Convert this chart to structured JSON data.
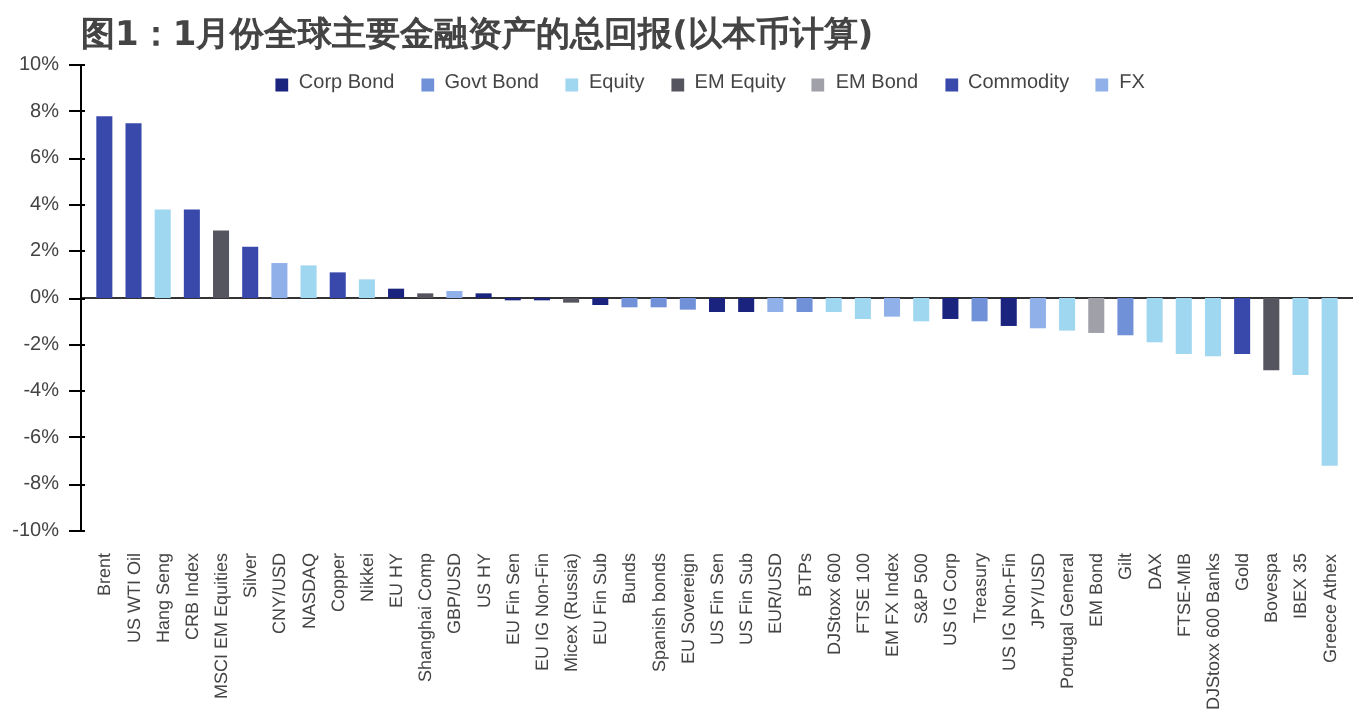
{
  "chart_data": {
    "type": "bar",
    "title": "图1：1月份全球主要金融资产的总回报(以本币计算)",
    "categories": [
      "Brent",
      "US WTI Oil",
      "Hang Seng",
      "CRB Index",
      "MSCI EM Equities",
      "Silver",
      "CNY/USD",
      "NASDAQ",
      "Copper",
      "Nikkei",
      "EU HY",
      "Shanghai Comp",
      "GBP/USD",
      "US HY",
      "EU Fin Sen",
      "EU IG Non-Fin",
      "Micex (Russia)",
      "EU Fin Sub",
      "Bunds",
      "Spanish bonds",
      "EU Sovereign",
      "US Fin Sen",
      "US Fin Sub",
      "EUR/USD",
      "BTPs",
      "DJStoxx 600",
      "FTSE 100",
      "EM FX Index",
      "S&P 500",
      "US IG Corp",
      "Treasury",
      "US IG Non-Fin",
      "JPY/USD",
      "Portugal General",
      "EM Bond",
      "Gilt",
      "DAX",
      "FTSE-MIB",
      "DJStoxx 600 Banks",
      "Gold",
      "Bovespa",
      "IBEX 35",
      "Greece Athex"
    ],
    "series": [
      {
        "name": "Corp Bond",
        "color": "#1a237e",
        "values": [
          null,
          null,
          null,
          null,
          null,
          null,
          null,
          null,
          null,
          null,
          0.4,
          null,
          null,
          0.2,
          -0.1,
          -0.1,
          null,
          -0.3,
          null,
          null,
          null,
          -0.6,
          -0.6,
          null,
          null,
          null,
          null,
          null,
          null,
          -0.9,
          null,
          -1.2,
          null,
          null,
          null,
          null,
          null,
          null,
          null,
          null,
          null,
          null,
          null
        ]
      },
      {
        "name": "Govt Bond",
        "color": "#7090d8",
        "values": [
          null,
          null,
          null,
          null,
          null,
          null,
          null,
          null,
          null,
          null,
          null,
          null,
          null,
          null,
          null,
          null,
          null,
          null,
          -0.4,
          -0.4,
          -0.5,
          null,
          null,
          null,
          -0.6,
          null,
          null,
          null,
          null,
          null,
          -1.0,
          null,
          null,
          null,
          null,
          -1.6,
          null,
          null,
          null,
          null,
          null,
          null,
          null
        ]
      },
      {
        "name": "Equity",
        "color": "#9fd6f0",
        "values": [
          null,
          null,
          3.8,
          null,
          null,
          null,
          null,
          1.4,
          null,
          0.8,
          null,
          null,
          null,
          null,
          null,
          null,
          null,
          null,
          null,
          null,
          null,
          null,
          null,
          null,
          null,
          -0.6,
          -0.9,
          null,
          -1.0,
          null,
          null,
          null,
          null,
          -1.4,
          null,
          null,
          -1.9,
          -2.4,
          -2.5,
          null,
          null,
          -3.3,
          -7.2
        ]
      },
      {
        "name": "EM Equity",
        "color": "#555560",
        "values": [
          null,
          null,
          null,
          null,
          2.9,
          null,
          null,
          null,
          null,
          null,
          null,
          0.2,
          null,
          null,
          null,
          null,
          -0.2,
          null,
          null,
          null,
          null,
          null,
          null,
          null,
          null,
          null,
          null,
          null,
          null,
          null,
          null,
          null,
          null,
          null,
          null,
          null,
          null,
          null,
          null,
          null,
          -3.1,
          null,
          null
        ]
      },
      {
        "name": "EM Bond",
        "color": "#a0a0a8",
        "values": [
          null,
          null,
          null,
          null,
          null,
          null,
          null,
          null,
          null,
          null,
          null,
          null,
          null,
          null,
          null,
          null,
          null,
          null,
          null,
          null,
          null,
          null,
          null,
          null,
          null,
          null,
          null,
          null,
          null,
          null,
          null,
          null,
          null,
          null,
          -1.5,
          null,
          null,
          null,
          null,
          null,
          null,
          null,
          null
        ]
      },
      {
        "name": "Commodity",
        "color": "#3949ab",
        "values": [
          7.8,
          7.5,
          null,
          3.8,
          null,
          2.2,
          null,
          null,
          1.1,
          null,
          null,
          null,
          null,
          null,
          null,
          null,
          null,
          null,
          null,
          null,
          null,
          null,
          null,
          null,
          null,
          null,
          null,
          null,
          null,
          null,
          null,
          null,
          null,
          null,
          null,
          null,
          null,
          null,
          null,
          -2.4,
          null,
          null,
          null
        ]
      },
      {
        "name": "FX",
        "color": "#8fb0e8",
        "values": [
          null,
          null,
          null,
          null,
          null,
          null,
          1.5,
          null,
          null,
          null,
          null,
          null,
          0.3,
          null,
          null,
          null,
          null,
          null,
          null,
          null,
          null,
          null,
          null,
          -0.6,
          null,
          null,
          null,
          -0.8,
          null,
          null,
          null,
          null,
          -1.3,
          null,
          null,
          null,
          null,
          null,
          null,
          null,
          null,
          null,
          null
        ]
      }
    ],
    "ylim": [
      -10,
      10
    ],
    "yticks": [
      {
        "value": -10,
        "label": "-10%"
      },
      {
        "value": -8,
        "label": "-8%"
      },
      {
        "value": -6,
        "label": "-6%"
      },
      {
        "value": -4,
        "label": "-4%"
      },
      {
        "value": -2,
        "label": "-2%"
      },
      {
        "value": 0,
        "label": "0%"
      },
      {
        "value": 2,
        "label": "2%"
      },
      {
        "value": 4,
        "label": "4%"
      },
      {
        "value": 6,
        "label": "6%"
      },
      {
        "value": 8,
        "label": "8%"
      },
      {
        "value": 10,
        "label": "10%"
      }
    ],
    "legend": "top"
  }
}
